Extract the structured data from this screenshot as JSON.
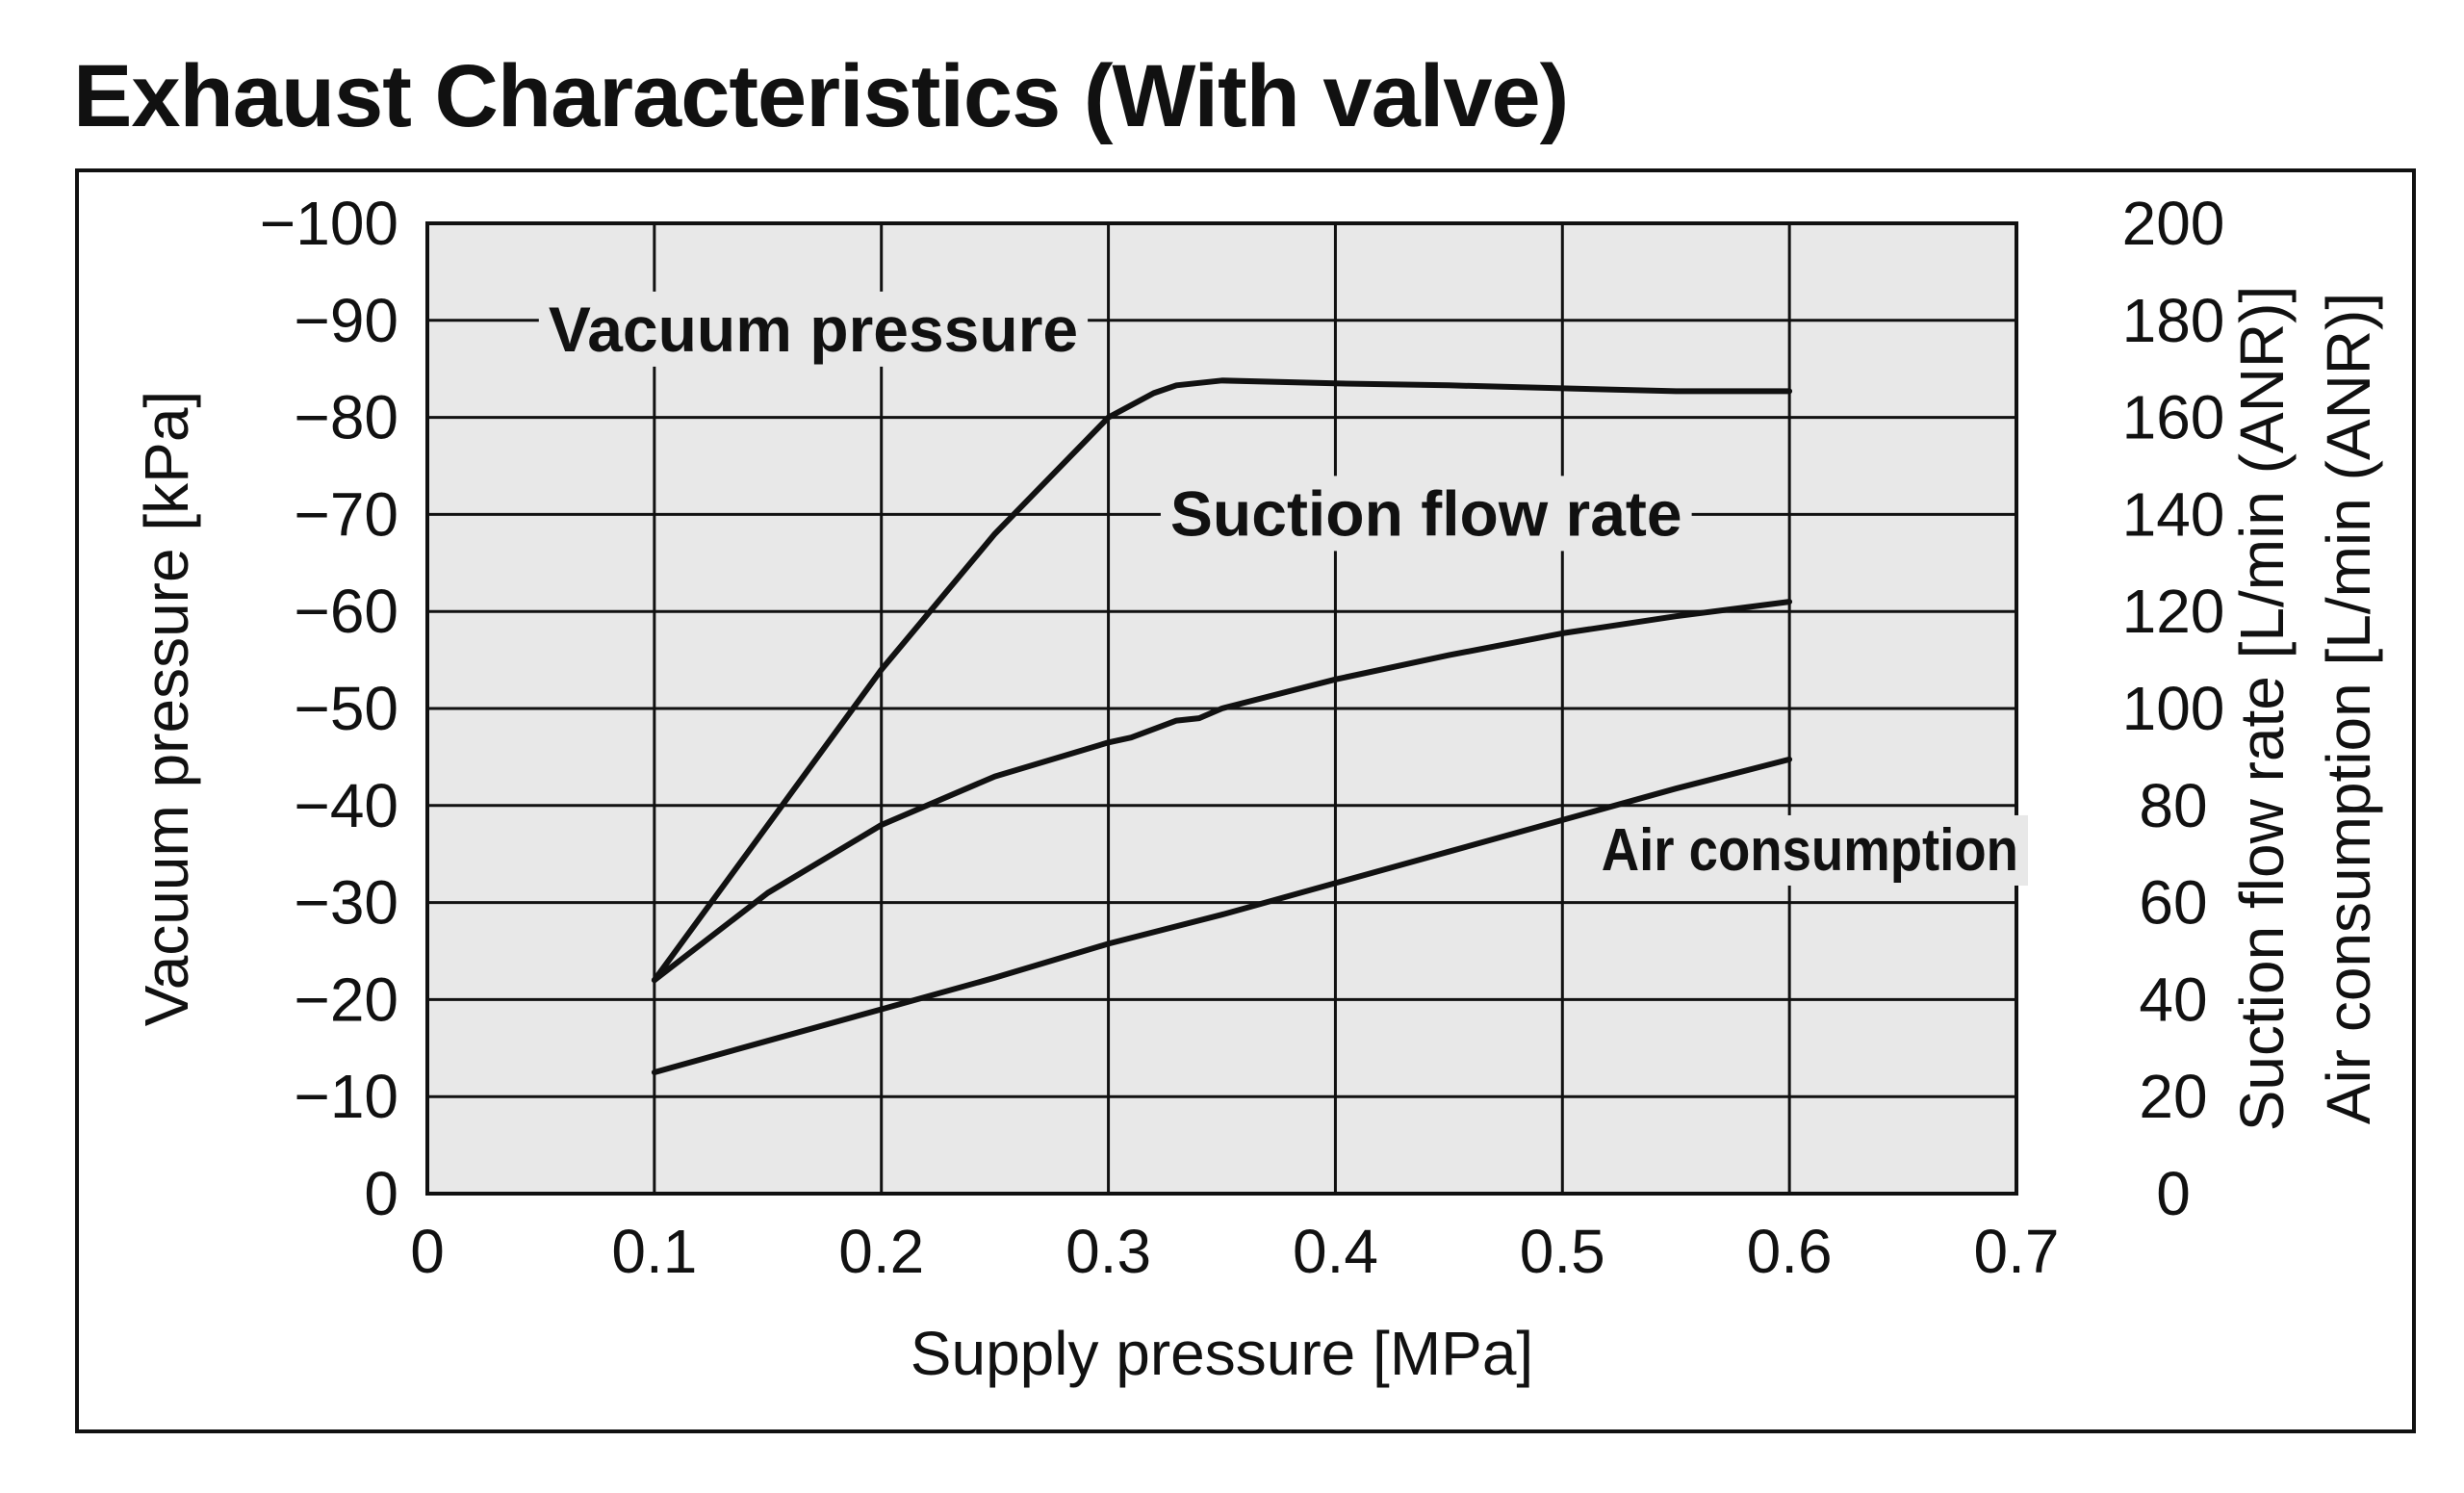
{
  "chart_data": {
    "type": "line",
    "title": "Exhaust Characteristics (With valve)",
    "xlabel": "Supply pressure [MPa]",
    "ylabel": "Vacuum pressure [kPa]",
    "y2labels": [
      "Suction flow rate [L/min (ANR)]",
      "Air consumption [L/min (ANR)]"
    ],
    "xlim": [
      0,
      0.7
    ],
    "ylim": [
      0,
      -100
    ],
    "y2lim": [
      0,
      200
    ],
    "x_ticks": [
      "0",
      "0.1",
      "0.2",
      "0.3",
      "0.4",
      "0.5",
      "0.6",
      "0.7"
    ],
    "y_ticks": [
      "0",
      "−10",
      "−20",
      "−30",
      "−40",
      "−50",
      "−60",
      "−70",
      "−80",
      "−90",
      "−100"
    ],
    "y2_ticks": [
      "0",
      "20",
      "40",
      "60",
      "80",
      "100",
      "120",
      "140",
      "160",
      "180",
      "200"
    ],
    "grid": true,
    "plot_background": "#e8e8e8",
    "line_color": "#111111",
    "series": [
      {
        "name": "Vacuum pressure",
        "axis": "left",
        "x": [
          0.1,
          0.15,
          0.2,
          0.25,
          0.3,
          0.32,
          0.33,
          0.35,
          0.4,
          0.45,
          0.5,
          0.55,
          0.6
        ],
        "y": [
          -22,
          -38,
          -54,
          -68,
          -80,
          -82.5,
          -83.3,
          -83.8,
          -83.5,
          -83.3,
          -83,
          -82.7,
          -82.7
        ]
      },
      {
        "name": "Suction flow rate",
        "axis": "right",
        "x": [
          0.1,
          0.15,
          0.2,
          0.25,
          0.3,
          0.31,
          0.33,
          0.34,
          0.35,
          0.4,
          0.45,
          0.5,
          0.55,
          0.6
        ],
        "y": [
          44,
          62,
          76,
          86,
          93,
          94,
          97.5,
          98,
          100,
          106,
          111,
          115.5,
          119,
          122
        ]
      },
      {
        "name": "Air consumption",
        "axis": "right",
        "x": [
          0.1,
          0.15,
          0.2,
          0.25,
          0.3,
          0.35,
          0.4,
          0.45,
          0.5,
          0.55,
          0.6
        ],
        "y": [
          25,
          31.5,
          38,
          44.5,
          51.5,
          57.5,
          64,
          70.5,
          77,
          83.5,
          89.5
        ]
      }
    ]
  }
}
